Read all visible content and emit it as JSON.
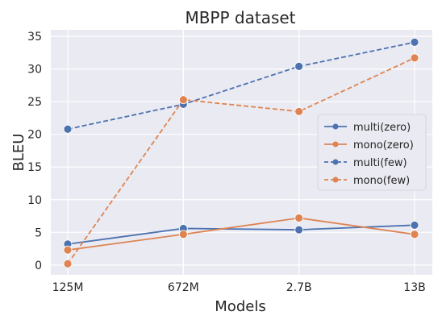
{
  "chart_data": {
    "type": "line",
    "title": "MBPP dataset",
    "xlabel": "Models",
    "ylabel": "BLEU",
    "categories": [
      "125M",
      "672M",
      "2.7B",
      "13B"
    ],
    "ylim": [
      -1.5,
      36
    ],
    "yticks": [
      0,
      5,
      10,
      15,
      20,
      25,
      30,
      35
    ],
    "grid": true,
    "legend_position": "right",
    "series": [
      {
        "name": "multi(zero)",
        "values": [
          3.2,
          5.6,
          5.4,
          6.1
        ],
        "color": "#4c72b0",
        "dash": "solid"
      },
      {
        "name": "mono(zero)",
        "values": [
          2.3,
          4.7,
          7.2,
          4.7
        ],
        "color": "#dd8452",
        "dash": "solid"
      },
      {
        "name": "multi(few)",
        "values": [
          20.8,
          24.6,
          30.4,
          34.1
        ],
        "color": "#4c72b0",
        "dash": "dashed"
      },
      {
        "name": "mono(few)",
        "values": [
          0.2,
          25.3,
          23.5,
          31.7
        ],
        "color": "#dd8452",
        "dash": "dashed"
      }
    ]
  }
}
